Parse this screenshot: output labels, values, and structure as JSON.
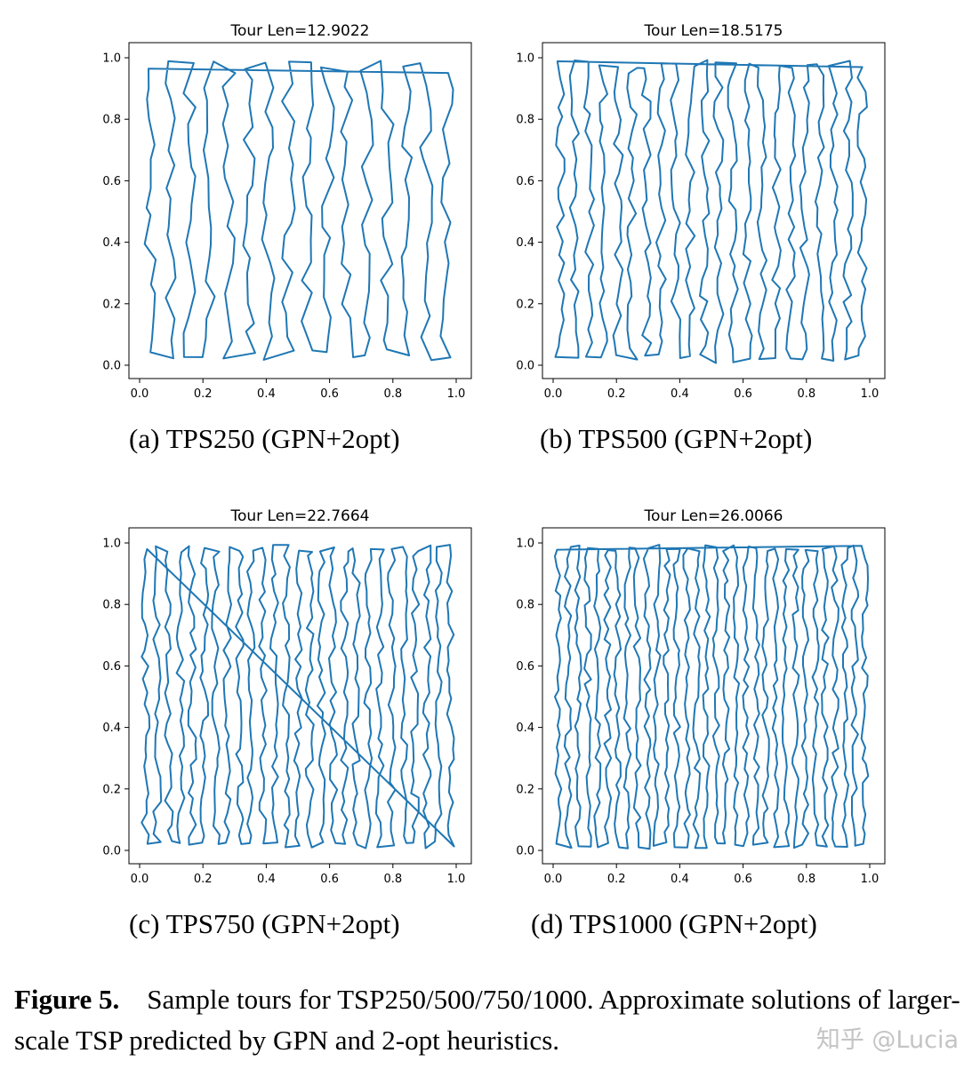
{
  "figure": {
    "label": "Figure 5.",
    "caption": "Sample tours for TSP250/500/750/1000. Approximate solutions of larger-scale TSP predicted by GPN and 2-opt heuristics.",
    "watermark": "知乎 @Lucia"
  },
  "chart_data": [
    {
      "type": "line",
      "title": "Tour Len=12.9022",
      "subcaption": "(a)  TPS250 (GPN+2opt)",
      "n_cities": 250,
      "xlim": [
        0,
        1
      ],
      "ylim": [
        0,
        1
      ],
      "xticks": [
        "0.0",
        "0.2",
        "0.4",
        "0.6",
        "0.8",
        "1.0"
      ],
      "yticks": [
        "0.0",
        "0.2",
        "0.4",
        "0.6",
        "0.8",
        "1.0"
      ],
      "series": [
        {
          "color": "#1f77b4"
        }
      ]
    },
    {
      "type": "line",
      "title": "Tour Len=18.5175",
      "subcaption": "(b)  TPS500 (GPN+2opt)",
      "n_cities": 500,
      "xlim": [
        0,
        1
      ],
      "ylim": [
        0,
        1
      ],
      "xticks": [
        "0.0",
        "0.2",
        "0.4",
        "0.6",
        "0.8",
        "1.0"
      ],
      "yticks": [
        "0.0",
        "0.2",
        "0.4",
        "0.6",
        "0.8",
        "1.0"
      ],
      "series": [
        {
          "color": "#1f77b4"
        }
      ]
    },
    {
      "type": "line",
      "title": "Tour Len=22.7664",
      "subcaption": "(c)  TPS750 (GPN+2opt)",
      "n_cities": 750,
      "xlim": [
        0,
        1
      ],
      "ylim": [
        0,
        1
      ],
      "xticks": [
        "0.0",
        "0.2",
        "0.4",
        "0.6",
        "0.8",
        "1.0"
      ],
      "yticks": [
        "0.0",
        "0.2",
        "0.4",
        "0.6",
        "0.8",
        "1.0"
      ],
      "series": [
        {
          "color": "#1f77b4"
        }
      ]
    },
    {
      "type": "line",
      "title": "Tour Len=26.0066",
      "subcaption": "(d)  TPS1000 (GPN+2opt)",
      "n_cities": 1000,
      "xlim": [
        0,
        1
      ],
      "ylim": [
        0,
        1
      ],
      "xticks": [
        "0.0",
        "0.2",
        "0.4",
        "0.6",
        "0.8",
        "1.0"
      ],
      "yticks": [
        "0.0",
        "0.2",
        "0.4",
        "0.6",
        "0.8",
        "1.0"
      ],
      "series": [
        {
          "color": "#1f77b4"
        }
      ]
    }
  ]
}
